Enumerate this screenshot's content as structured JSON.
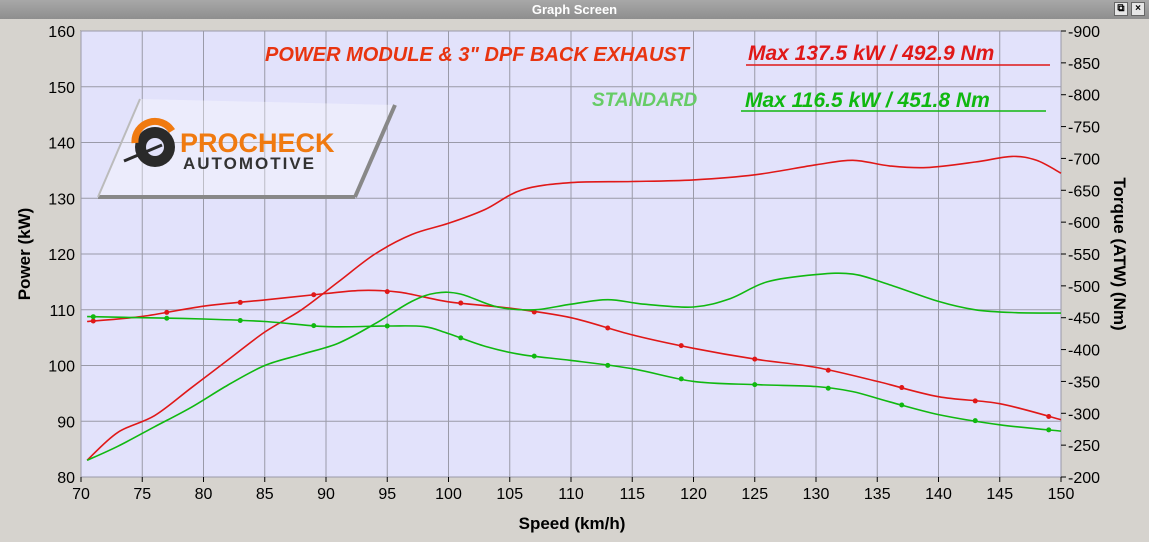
{
  "window": {
    "title": "Graph Screen",
    "restore_glyph": "⧉",
    "close_glyph": "×"
  },
  "logo": {
    "line1": "PROCHECK",
    "line2": "AUTOMOTIVE"
  },
  "annotations": {
    "modified_label": "POWER MODULE & 3\" DPF BACK EXHAUST",
    "modified_max": "Max 137.5 kW  / 492.9 Nm",
    "standard_label": "STANDARD",
    "standard_max": "Max 116.5 kW  / 451.8 Nm"
  },
  "chart_data": {
    "type": "line",
    "xlabel": "Speed (km/h)",
    "ylabel": "Power (kW)",
    "y2label": "Torque (ATW) (Nm)",
    "xlim": [
      70,
      150
    ],
    "ylim": [
      80,
      160
    ],
    "y2lim": [
      200,
      900
    ],
    "x_ticks": [
      70,
      75,
      80,
      85,
      90,
      95,
      100,
      105,
      110,
      115,
      120,
      125,
      130,
      135,
      140,
      145,
      150
    ],
    "y_ticks": [
      80,
      90,
      100,
      110,
      120,
      130,
      140,
      150,
      160
    ],
    "y2_ticks": [
      200,
      250,
      300,
      350,
      400,
      450,
      500,
      550,
      600,
      650,
      700,
      750,
      800,
      850,
      900
    ],
    "grid": true,
    "colors": {
      "modified": "#e01818",
      "standard": "#10b810",
      "plot_bg": "#e2e2fb",
      "grid": "#9a9aa8"
    },
    "series": [
      {
        "name": "POWER MODULE & 3\" DPF BACK EXHAUST",
        "quantity": "power",
        "axis": "left",
        "color": "#e01818",
        "x": [
          70.5,
          73,
          76,
          79,
          82,
          85,
          88,
          91,
          94,
          97,
          100,
          103,
          106,
          110,
          115,
          120,
          125,
          130,
          133,
          136,
          139,
          143,
          146,
          148,
          150
        ],
        "y": [
          83,
          88,
          91,
          96,
          101,
          106,
          110,
          115,
          120,
          123.5,
          125.5,
          128,
          131.5,
          132.8,
          133,
          133.3,
          134.2,
          136,
          136.8,
          135.8,
          135.5,
          136.5,
          137.5,
          136.8,
          134.5
        ]
      },
      {
        "name": "POWER MODULE & 3\" DPF BACK EXHAUST",
        "quantity": "torque",
        "axis": "right",
        "color": "#e01818",
        "x": [
          70.5,
          75,
          80,
          85,
          90,
          93,
          96,
          100,
          105,
          110,
          115,
          120,
          125,
          130,
          135,
          140,
          145,
          150
        ],
        "y": [
          444,
          452,
          468,
          478,
          488,
          492.9,
          490,
          475,
          465,
          450,
          423,
          402,
          385,
          372,
          350,
          326,
          315,
          290
        ]
      },
      {
        "name": "STANDARD",
        "quantity": "power",
        "axis": "left",
        "color": "#10b810",
        "x": [
          70.5,
          73,
          76,
          79,
          82,
          85,
          88,
          91,
          94,
          97,
          99,
          101,
          104,
          107,
          110,
          113,
          116,
          120,
          123,
          126,
          130,
          133,
          136,
          140,
          143,
          146,
          150
        ],
        "y": [
          83,
          85.5,
          89,
          92.5,
          96.5,
          100,
          102,
          104,
          107.5,
          111.5,
          113,
          112.8,
          110.5,
          110,
          111,
          111.8,
          111,
          110.5,
          112,
          115,
          116.3,
          116.4,
          114.5,
          111.5,
          110,
          109.5,
          109.4
        ]
      },
      {
        "name": "STANDARD",
        "quantity": "torque",
        "axis": "right",
        "color": "#10b810",
        "x": [
          70.5,
          75,
          80,
          85,
          90,
          95,
          98,
          100,
          103,
          106,
          110,
          115,
          120,
          125,
          130,
          133,
          136,
          140,
          145,
          150
        ],
        "y": [
          451.8,
          450,
          448,
          444,
          436,
          437,
          436,
          425,
          405,
          392,
          383,
          370,
          350,
          345,
          342,
          334,
          318,
          298,
          282,
          272
        ]
      }
    ]
  }
}
